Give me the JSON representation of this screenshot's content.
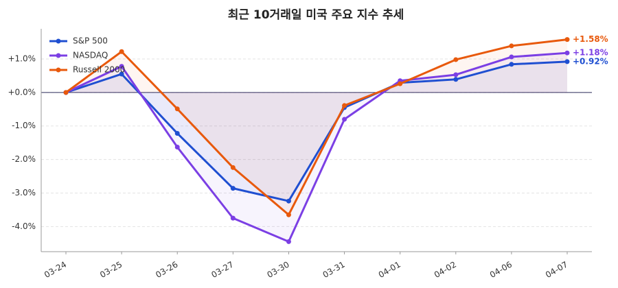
{
  "chart_data": {
    "type": "line",
    "title": "최근 10거래일 미국 주요 지수 추세",
    "categories": [
      "03-24",
      "03-25",
      "03-26",
      "03-27",
      "03-30",
      "03-31",
      "04-01",
      "04-02",
      "04-06",
      "04-07"
    ],
    "series": [
      {
        "name": "S&P 500",
        "color": "#1f4fd1",
        "values": [
          0,
          0.55,
          -1.22,
          -2.86,
          -3.24,
          -0.45,
          0.29,
          0.39,
          0.84,
          0.92
        ],
        "value_labels": [
          null,
          null,
          null,
          null,
          null,
          null,
          null,
          null,
          null,
          "+0.92%"
        ]
      },
      {
        "name": "NASDAQ",
        "color": "#7b3fe4",
        "values": [
          0,
          0.78,
          -1.63,
          -3.75,
          -4.45,
          -0.8,
          0.35,
          0.53,
          1.06,
          1.18
        ],
        "value_labels": [
          null,
          null,
          null,
          null,
          null,
          null,
          null,
          null,
          null,
          "+1.18%"
        ]
      },
      {
        "name": "Russell 2000",
        "color": "#e8590c",
        "values": [
          0,
          1.22,
          -0.49,
          -2.24,
          -3.65,
          -0.39,
          0.26,
          0.98,
          1.39,
          1.58
        ],
        "value_labels": [
          null,
          null,
          null,
          null,
          null,
          null,
          null,
          null,
          null,
          "+1.58%"
        ]
      }
    ],
    "ylim": [
      -4.75,
      1.9
    ],
    "yticks": [
      {
        "value": 1,
        "label": "+1.0%"
      },
      {
        "value": 0,
        "label": "+0.0%"
      },
      {
        "value": -1,
        "label": "-1.0%"
      },
      {
        "value": -2,
        "label": "-2.0%"
      },
      {
        "value": -3,
        "label": "-3.0%"
      },
      {
        "value": -4,
        "label": "-4.0%"
      }
    ],
    "grid": true,
    "legend": "upper-left"
  }
}
